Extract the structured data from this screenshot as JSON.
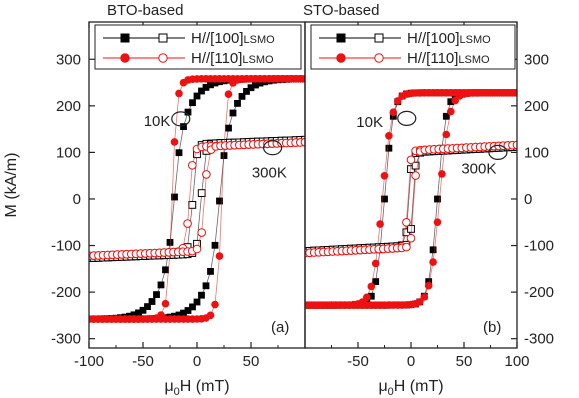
{
  "colors": {
    "series_100": "#000000",
    "series_110": "#ee1111",
    "axis": "#222222"
  },
  "chart_data": [
    {
      "type": "scatter",
      "title": "BTO-based",
      "panel_label": "(a)",
      "xlabel_parts": {
        "prefix": "μ",
        "sub": "0",
        "suffix": "H (mT)"
      },
      "ylabel": "M (kA/m)",
      "xlim": [
        -100,
        100
      ],
      "ylim": [
        -320,
        380
      ],
      "xticks": [
        -100,
        -50,
        0,
        50
      ],
      "xtick_labels": [
        "-100",
        "-50",
        "0",
        "50"
      ],
      "yticks": [
        -300,
        -200,
        -100,
        0,
        100,
        200,
        300
      ],
      "ytick_labels": [
        "-300",
        "-200",
        "-100",
        "0",
        "100",
        "200",
        "300"
      ],
      "grid": false,
      "legend_placement": "top-left",
      "annotations": [
        {
          "text": "10K",
          "x": -37,
          "y": 167,
          "ring": {
            "x": -15,
            "y": 172
          }
        },
        {
          "text": "300K",
          "x": 67,
          "y": 57,
          "ring": {
            "x": 70,
            "y": 110
          }
        }
      ],
      "series": [
        {
          "name": "H//[100]LSMO",
          "legend_main": "H//[100]",
          "legend_sub": "LSMO",
          "marker": "square",
          "color": "#000000",
          "loops": [
            {
              "temp": "10K",
              "fill": "filled",
              "hc": 21,
              "ms": 258,
              "w_out": 22,
              "w_in": 6,
              "k_out": 0.55,
              "k_in": 0.45
            },
            {
              "temp": "300K",
              "fill": "open",
              "hc": 4,
              "ms": 118,
              "w_out": 4,
              "w_in": 2.5,
              "k_out": 1.0,
              "k_in": 0.5,
              "slope": 0.09
            }
          ]
        },
        {
          "name": "H//[110]LSMO",
          "legend_main": "H//[110]",
          "legend_sub": "LSMO",
          "marker": "circle",
          "color": "#ee1111",
          "loops": [
            {
              "temp": "10K",
              "fill": "filled",
              "hc": 23,
              "ms": 258,
              "w_out": 7,
              "w_in": 3.5,
              "k_out": 0.3,
              "k_in": 0.7
            },
            {
              "temp": "300K",
              "fill": "open",
              "hc": 7,
              "ms": 112,
              "w_out": 4,
              "w_in": 2.5,
              "k_out": 1.0,
              "k_in": 0.5,
              "slope": 0.1
            }
          ]
        }
      ]
    },
    {
      "type": "scatter",
      "title": "STO-based",
      "panel_label": "(b)",
      "xlabel_parts": {
        "prefix": "μ",
        "sub": "0",
        "suffix": "H (mT)"
      },
      "ylabel": "",
      "xlim": [
        -100,
        100
      ],
      "ylim": [
        -320,
        380
      ],
      "xticks": [
        -50,
        0,
        50,
        100
      ],
      "xtick_labels": [
        "-50",
        "0",
        "50",
        "100"
      ],
      "yticks": [
        -300,
        -200,
        -100,
        0,
        100,
        200,
        300
      ],
      "ytick_labels": [
        "-300",
        "-200",
        "-100",
        "0",
        "100",
        "200",
        "300"
      ],
      "grid": false,
      "legend_placement": "top-left",
      "annotations": [
        {
          "text": "10K",
          "x": -39,
          "y": 165,
          "ring": {
            "x": -4,
            "y": 173
          }
        },
        {
          "text": "300K",
          "x": 64,
          "y": 65,
          "ring": {
            "x": 82,
            "y": 100
          }
        }
      ],
      "series": [
        {
          "name": "H//[100]LSMO",
          "legend_main": "H//[100]",
          "legend_sub": "LSMO",
          "marker": "square",
          "color": "#000000",
          "loops": [
            {
              "temp": "10K",
              "fill": "filled",
              "hc": 25,
              "ms": 228,
              "w_out": 8,
              "w_in": 8,
              "k_out": 0.4,
              "k_in": 0.6
            },
            {
              "temp": "300K",
              "fill": "open",
              "hc": 2,
              "ms": 100,
              "w_out": 3,
              "w_in": 2,
              "k_out": 1.0,
              "k_in": 0.5,
              "slope": 0.12
            }
          ]
        },
        {
          "name": "H//[110]LSMO",
          "legend_main": "H//[110]",
          "legend_sub": "LSMO",
          "marker": "circle",
          "color": "#ee1111",
          "loops": [
            {
              "temp": "10K",
              "fill": "filled",
              "hc": 27,
              "ms": 228,
              "w_out": 9,
              "w_in": 9,
              "k_out": 0.4,
              "k_in": 0.6
            },
            {
              "temp": "300K",
              "fill": "open",
              "hc": 3,
              "ms": 104,
              "w_out": 3,
              "w_in": 2,
              "k_out": 1.0,
              "k_in": 0.5,
              "slope": 0.12
            }
          ]
        }
      ]
    }
  ]
}
